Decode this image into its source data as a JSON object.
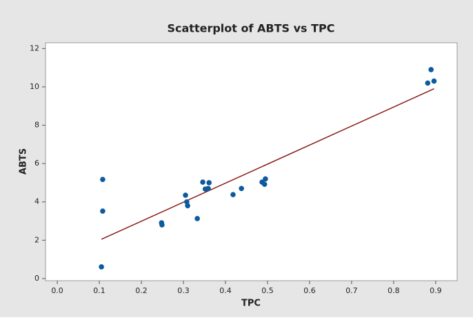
{
  "chart_data": {
    "type": "scatter",
    "title": "Scatterplot of ABTS vs TPC",
    "xlabel": "TPC",
    "ylabel": "ABTS",
    "x": [
      0.105,
      0.108,
      0.108,
      0.248,
      0.249,
      0.305,
      0.308,
      0.31,
      0.333,
      0.346,
      0.352,
      0.359,
      0.361,
      0.418,
      0.438,
      0.487,
      0.493,
      0.495,
      0.881,
      0.889,
      0.896
    ],
    "y": [
      0.61,
      5.17,
      3.52,
      2.91,
      2.8,
      4.35,
      4.0,
      3.8,
      3.13,
      5.03,
      4.67,
      4.7,
      5.0,
      4.38,
      4.7,
      5.03,
      4.92,
      5.2,
      10.2,
      10.9,
      10.3
    ],
    "color": "#0d5a9e",
    "fit_line": {
      "x": [
        0.105,
        0.896
      ],
      "y": [
        2.05,
        9.9
      ],
      "color": "#8b1a1a"
    },
    "xlim": [
      -0.028,
      0.951
    ],
    "ylim": [
      -0.11,
      12.3
    ],
    "xticks": [
      {
        "value": 0,
        "label": "0.0"
      },
      0.1,
      0.2,
      0.3,
      0.4,
      0.5,
      0.6,
      0.7,
      0.8,
      0.9
    ],
    "yticks": [
      0,
      2,
      4,
      6,
      8,
      10,
      12
    ]
  }
}
